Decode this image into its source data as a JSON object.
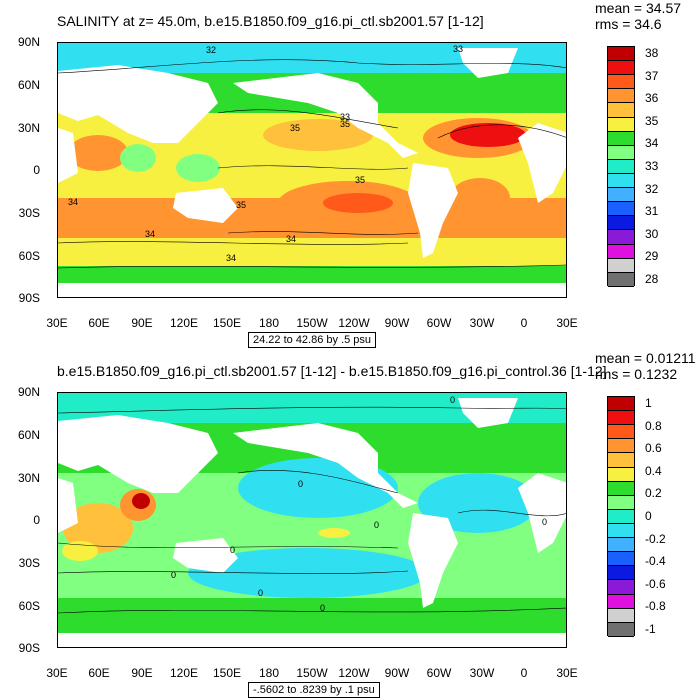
{
  "panel1": {
    "title": "SALINITY at z=  45.0m, b.e15.B1850.f09_g16.pi_ctl.sb2001.57 [1-12]",
    "mean": "mean = 34.57",
    "rms": "rms = 34.6",
    "range": "24.22 to 42.86 by .5 psu",
    "lat_labels": [
      "90N",
      "60N",
      "30N",
      "0",
      "30S",
      "60S",
      "90S"
    ],
    "lon_labels": [
      "30E",
      "60E",
      "90E",
      "120E",
      "150E",
      "180",
      "150W",
      "120W",
      "90W",
      "60W",
      "30W",
      "0",
      "30E"
    ],
    "contour_labels": [
      "32",
      "33",
      "35",
      "35",
      "35",
      "35",
      "34",
      "34",
      "34",
      "33",
      "34"
    ],
    "colorbar": {
      "labels": [
        "38",
        "37",
        "36",
        "35",
        "34",
        "33",
        "32",
        "31",
        "30",
        "29",
        "28"
      ],
      "colors": [
        "#c00000",
        "#ee1010",
        "#ff5a1a",
        "#ff9430",
        "#ffc03c",
        "#f8f040",
        "#2edc2e",
        "#80ff80",
        "#20ecc8",
        "#30e0f0",
        "#40b0ff",
        "#1a60ff",
        "#0b1ae0",
        "#8a1ad8",
        "#e010e0",
        "#d0d0d0",
        "#707070"
      ]
    }
  },
  "panel2": {
    "title": "b.e15.B1850.f09_g16.pi_ctl.sb2001.57 [1-12] - b.e15.B1850.f09_g16.pi_control.36 [1-12]",
    "mean": "mean = 0.01211",
    "rms": "rms = 0.1232",
    "range": "-.5602 to .8239 by .1 psu",
    "lat_labels": [
      "90N",
      "60N",
      "30N",
      "0",
      "30S",
      "60S",
      "90S"
    ],
    "lon_labels": [
      "30E",
      "60E",
      "90E",
      "120E",
      "150E",
      "180",
      "150W",
      "120W",
      "90W",
      "60W",
      "30W",
      "0",
      "30E"
    ],
    "contour_labels": [
      "0",
      "0",
      "0",
      "0",
      "0",
      "0",
      "0",
      "0"
    ],
    "colorbar": {
      "labels": [
        "1",
        "0.8",
        "0.6",
        "0.4",
        "0.2",
        "0",
        "-0.2",
        "-0.4",
        "-0.6",
        "-0.8",
        "-1"
      ],
      "colors": [
        "#c00000",
        "#ee1010",
        "#ff5a1a",
        "#ff9430",
        "#ffc03c",
        "#f8f040",
        "#2edc2e",
        "#80ff80",
        "#20ecc8",
        "#30e0f0",
        "#40b0ff",
        "#1a60ff",
        "#0b1ae0",
        "#8a1ad8",
        "#e010e0",
        "#d0d0d0",
        "#707070"
      ]
    }
  }
}
